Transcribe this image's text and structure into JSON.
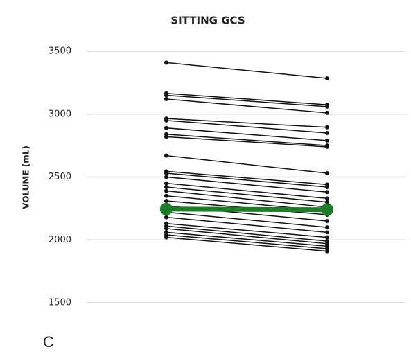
{
  "chart_data": {
    "type": "line",
    "title": "SITTING GCS",
    "y_label": "VOLUME (mL)",
    "panel_label": "C",
    "categories": [
      null,
      null
    ],
    "ylim": [
      1500,
      3500
    ],
    "yticks": [
      1500,
      2000,
      2500,
      3000,
      3500
    ],
    "grid": true,
    "series": [
      {
        "color": "#111111",
        "line_width": 1.5,
        "values": [
          3410,
          3285
        ]
      },
      {
        "color": "#111111",
        "line_width": 1.5,
        "values": [
          3165,
          3075
        ]
      },
      {
        "color": "#111111",
        "line_width": 1.5,
        "values": [
          3150,
          3060
        ]
      },
      {
        "color": "#111111",
        "line_width": 1.5,
        "values": [
          3120,
          3010
        ]
      },
      {
        "color": "#111111",
        "line_width": 1.5,
        "values": [
          2965,
          2895
        ]
      },
      {
        "color": "#111111",
        "line_width": 1.5,
        "values": [
          2950,
          2850
        ]
      },
      {
        "color": "#111111",
        "line_width": 1.5,
        "values": [
          2890,
          2790
        ]
      },
      {
        "color": "#111111",
        "line_width": 1.5,
        "values": [
          2840,
          2750
        ]
      },
      {
        "color": "#111111",
        "line_width": 1.5,
        "values": [
          2820,
          2740
        ]
      },
      {
        "color": "#111111",
        "line_width": 1.5,
        "values": [
          2670,
          2530
        ]
      },
      {
        "color": "#111111",
        "line_width": 1.5,
        "values": [
          2545,
          2440
        ]
      },
      {
        "color": "#111111",
        "line_width": 1.5,
        "values": [
          2530,
          2420
        ]
      },
      {
        "color": "#111111",
        "line_width": 1.5,
        "values": [
          2500,
          2380
        ]
      },
      {
        "color": "#111111",
        "line_width": 1.5,
        "values": [
          2450,
          2330
        ]
      },
      {
        "color": "#111111",
        "line_width": 1.5,
        "values": [
          2420,
          2300
        ]
      },
      {
        "color": "#111111",
        "line_width": 1.5,
        "values": [
          2390,
          2260
        ]
      },
      {
        "color": "#111111",
        "line_width": 1.5,
        "values": [
          2350,
          2230
        ]
      },
      {
        "color": "#111111",
        "line_width": 1.5,
        "values": [
          2310,
          2200
        ]
      },
      {
        "color": "#111111",
        "line_width": 1.5,
        "values": [
          2270,
          2150
        ]
      },
      {
        "color": "#111111",
        "line_width": 1.5,
        "values": [
          2220,
          2100
        ]
      },
      {
        "color": "#111111",
        "line_width": 1.5,
        "values": [
          2180,
          2060
        ]
      },
      {
        "color": "#111111",
        "line_width": 1.5,
        "values": [
          2130,
          2020
        ]
      },
      {
        "color": "#111111",
        "line_width": 1.5,
        "values": [
          2110,
          1990
        ]
      },
      {
        "color": "#111111",
        "line_width": 1.5,
        "values": [
          2090,
          1970
        ]
      },
      {
        "color": "#111111",
        "line_width": 1.5,
        "values": [
          2060,
          1950
        ]
      },
      {
        "color": "#111111",
        "line_width": 1.5,
        "values": [
          2040,
          1930
        ]
      },
      {
        "color": "#111111",
        "line_width": 1.5,
        "values": [
          2020,
          1910
        ]
      },
      {
        "color": "#1e7b2a",
        "line_width": 7,
        "values": [
          2245,
          2240
        ]
      }
    ]
  }
}
